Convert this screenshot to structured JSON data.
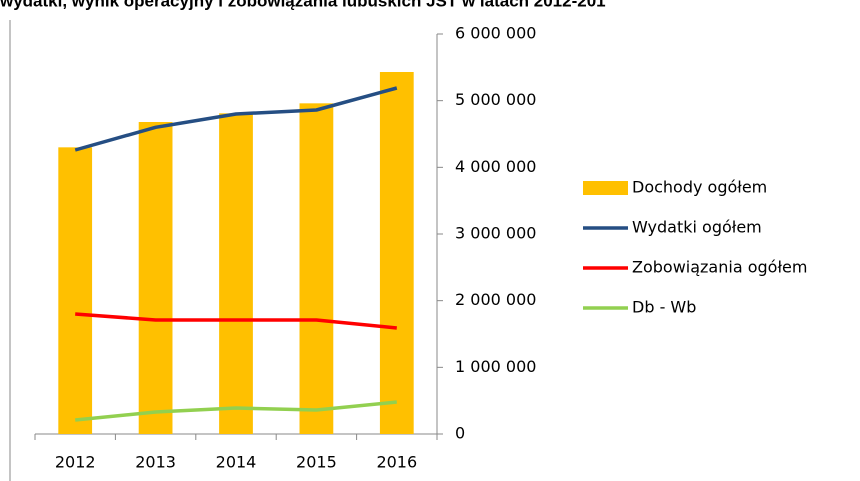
{
  "chart_data": {
    "type": "bar",
    "title": "wydatki, wynik operacyjny i zobowiązania lubuskich JST w latach 2012-201",
    "categories": [
      "2012",
      "2013",
      "2014",
      "2015",
      "2016"
    ],
    "series": [
      {
        "name": "Dochody ogółem",
        "type": "bar",
        "color": "#FFC000",
        "values": [
          4300000,
          4680000,
          4810000,
          4960000,
          5430000
        ]
      },
      {
        "name": "Wydatki ogółem",
        "type": "line",
        "color": "#254E83",
        "values": [
          4260000,
          4600000,
          4800000,
          4860000,
          5190000
        ]
      },
      {
        "name": "Zobowiązania ogółem",
        "type": "line",
        "color": "#FF0000",
        "values": [
          1800000,
          1710000,
          1710000,
          1710000,
          1590000
        ]
      },
      {
        "name": "Db - Wb",
        "type": "line",
        "color": "#92D050",
        "values": [
          210000,
          330000,
          390000,
          360000,
          480000
        ]
      }
    ],
    "ylim": [
      0,
      6000000
    ],
    "yticks": [
      0,
      {
        "value": 1000000,
        "label": "1 000 000"
      },
      {
        "value": 2000000,
        "label": "2 000 000"
      },
      {
        "value": 3000000,
        "label": "3 000 000"
      },
      {
        "value": 4000000,
        "label": "4 000 000"
      },
      {
        "value": 5000000,
        "label": "5 000 000"
      },
      {
        "value": 6000000,
        "label": "6 000 000"
      }
    ],
    "legend": "right"
  }
}
